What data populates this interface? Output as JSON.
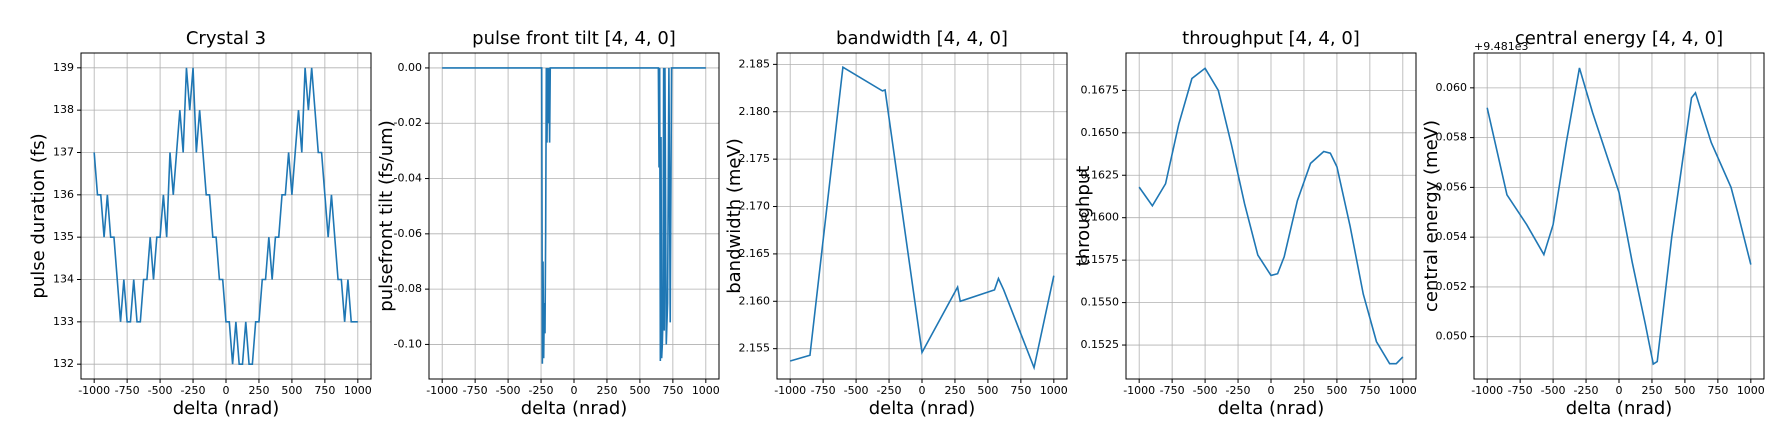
{
  "chart_data": [
    {
      "type": "line",
      "title": "Crystal 3",
      "xlabel": "delta (nrad)",
      "ylabel": "pulse duration (fs)",
      "color": "#1f77b4",
      "grid": true,
      "xlim": [
        -1100,
        1100
      ],
      "xticks": [
        -1000,
        -750,
        -500,
        -250,
        0,
        250,
        500,
        750,
        1000
      ],
      "ylim": [
        131.65,
        139.35
      ],
      "yticks": [
        132,
        133,
        134,
        135,
        136,
        137,
        138,
        139
      ],
      "x": [
        -1000,
        -975,
        -950,
        -925,
        -900,
        -875,
        -850,
        -825,
        -800,
        -775,
        -750,
        -725,
        -700,
        -675,
        -650,
        -625,
        -600,
        -575,
        -550,
        -525,
        -500,
        -475,
        -450,
        -425,
        -400,
        -375,
        -350,
        -325,
        -300,
        -275,
        -250,
        -225,
        -200,
        -175,
        -150,
        -125,
        -100,
        -75,
        -50,
        -25,
        0,
        25,
        50,
        75,
        100,
        125,
        150,
        175,
        200,
        225,
        250,
        275,
        300,
        325,
        350,
        375,
        400,
        425,
        450,
        475,
        500,
        525,
        550,
        575,
        600,
        625,
        650,
        675,
        700,
        725,
        750,
        775,
        800,
        825,
        850,
        875,
        900,
        925,
        950,
        975,
        1000
      ],
      "values": [
        137,
        136,
        136,
        135,
        136,
        135,
        135,
        134,
        133,
        134,
        133,
        133,
        134,
        133,
        133,
        134,
        134,
        135,
        134,
        135,
        135,
        136,
        135,
        137,
        136,
        137,
        138,
        137,
        139,
        138,
        139,
        137,
        138,
        137,
        136,
        136,
        135,
        135,
        134,
        134,
        133,
        133,
        132,
        133,
        132,
        132,
        133,
        132,
        132,
        133,
        133,
        134,
        134,
        135,
        134,
        135,
        135,
        136,
        136,
        137,
        136,
        137,
        138,
        137,
        139,
        138,
        139,
        138,
        137,
        137,
        136,
        135,
        136,
        135,
        134,
        134,
        133,
        134,
        133,
        133,
        133
      ]
    },
    {
      "type": "line",
      "title": "pulse front tilt [4, 4, 0]",
      "xlabel": "delta (nrad)",
      "ylabel": "pulsefront tilt (fs/um)",
      "color": "#1f77b4",
      "grid": true,
      "xlim": [
        -1100,
        1100
      ],
      "xticks": [
        -1000,
        -750,
        -500,
        -250,
        0,
        250,
        500,
        750,
        1000
      ],
      "ylim": [
        -0.1125,
        0.0054
      ],
      "yticks": [
        {
          "value": 0,
          "label": "0.00"
        },
        {
          "value": -0.02,
          "label": "-0.02"
        },
        {
          "value": -0.04,
          "label": "-0.04"
        },
        {
          "value": -0.06,
          "label": "-0.06"
        },
        {
          "value": -0.08,
          "label": "-0.08"
        },
        {
          "value": -0.1,
          "label": "-0.10"
        }
      ],
      "x": [
        -1000,
        -245,
        -240,
        -235,
        -230,
        -225,
        -220,
        -215,
        -210,
        -205,
        -200,
        -195,
        -190,
        -185,
        -180,
        -175,
        -170,
        -165,
        -160,
        640,
        645,
        650,
        655,
        660,
        665,
        670,
        675,
        680,
        685,
        690,
        700,
        710,
        720,
        730,
        740,
        745,
        1000
      ],
      "values": [
        0,
        0,
        -0.107,
        -0.07,
        -0.105,
        -0.085,
        -0.096,
        -0.06,
        0,
        -0.027,
        0,
        -0.02,
        0,
        -0.027,
        0,
        0,
        0,
        0,
        0,
        0,
        -0.036,
        0,
        -0.106,
        -0.025,
        -0.105,
        -0.1,
        -0.09,
        0,
        -0.095,
        0,
        -0.1,
        -0.085,
        0,
        -0.092,
        0,
        0,
        0
      ]
    },
    {
      "type": "line",
      "title": "bandwidth [4, 4, 0]",
      "xlabel": "delta (nrad)",
      "ylabel": "bandwidth (meV)",
      "color": "#1f77b4",
      "grid": true,
      "xlim": [
        -1100,
        1100
      ],
      "xticks": [
        -1000,
        -750,
        -500,
        -250,
        0,
        250,
        500,
        750,
        1000
      ],
      "ylim": [
        2.1518,
        2.1862
      ],
      "yticks": [
        2.155,
        {
          "value": 2.16,
          "label": "2.160"
        },
        2.165,
        {
          "value": 2.17,
          "label": "2.170"
        },
        2.175,
        {
          "value": 2.18,
          "label": "2.180"
        },
        2.185
      ],
      "x": [
        -1000,
        -850,
        -600,
        -300,
        -280,
        0,
        270,
        290,
        550,
        580,
        620,
        850,
        1000
      ],
      "values": [
        2.1537,
        2.1543,
        2.1847,
        2.1822,
        2.1823,
        2.1546,
        2.1615,
        2.16,
        2.1612,
        2.1624,
        2.1612,
        2.153,
        2.1627
      ]
    },
    {
      "type": "line",
      "title": "throughput [4, 4, 0]",
      "xlabel": "delta (nrad)",
      "ylabel": "throughput",
      "color": "#1f77b4",
      "grid": true,
      "xlim": [
        -1100,
        1100
      ],
      "xticks": [
        -1000,
        -750,
        -500,
        -250,
        0,
        250,
        500,
        750,
        1000
      ],
      "ylim": [
        0.1505,
        0.1697
      ],
      "yticks": [
        0.1525,
        {
          "value": 0.155,
          "label": "0.1550"
        },
        0.1575,
        {
          "value": 0.16,
          "label": "0.1600"
        },
        0.1625,
        {
          "value": 0.165,
          "label": "0.1650"
        },
        0.1675
      ],
      "x": [
        -1000,
        -900,
        -800,
        -700,
        -600,
        -500,
        -400,
        -300,
        -200,
        -100,
        0,
        50,
        100,
        200,
        300,
        400,
        450,
        500,
        600,
        700,
        800,
        900,
        950,
        1000
      ],
      "values": [
        0.1618,
        0.1607,
        0.162,
        0.1655,
        0.1682,
        0.1688,
        0.1675,
        0.1643,
        0.1608,
        0.1578,
        0.1566,
        0.1567,
        0.1577,
        0.161,
        0.1632,
        0.1639,
        0.1638,
        0.163,
        0.1595,
        0.1555,
        0.1527,
        0.1514,
        0.1514,
        0.1518
      ]
    },
    {
      "type": "line",
      "title": "central energy [4, 4, 0]",
      "xlabel": "delta (nrad)",
      "ylabel": "central energy (meV)",
      "offset_label": "+9.481e3",
      "color": "#1f77b4",
      "grid": true,
      "xlim": [
        -1100,
        1100
      ],
      "xticks": [
        -1000,
        -750,
        -500,
        -250,
        0,
        250,
        500,
        750,
        1000
      ],
      "ylim": [
        0.0483,
        0.0614
      ],
      "yticks": [
        {
          "value": 0.05,
          "label": "0.050"
        },
        0.052,
        0.054,
        0.056,
        0.058,
        {
          "value": 0.06,
          "label": "0.060"
        }
      ],
      "x": [
        -1000,
        -850,
        -700,
        -570,
        -500,
        -400,
        -300,
        -200,
        0,
        100,
        200,
        260,
        290,
        400,
        550,
        580,
        700,
        850,
        900,
        1000
      ],
      "values": [
        0.0592,
        0.0557,
        0.0545,
        0.0533,
        0.0545,
        0.0578,
        0.0608,
        0.059,
        0.0558,
        0.053,
        0.0505,
        0.0489,
        0.049,
        0.054,
        0.0596,
        0.0598,
        0.0578,
        0.056,
        0.055,
        0.0529
      ]
    }
  ]
}
